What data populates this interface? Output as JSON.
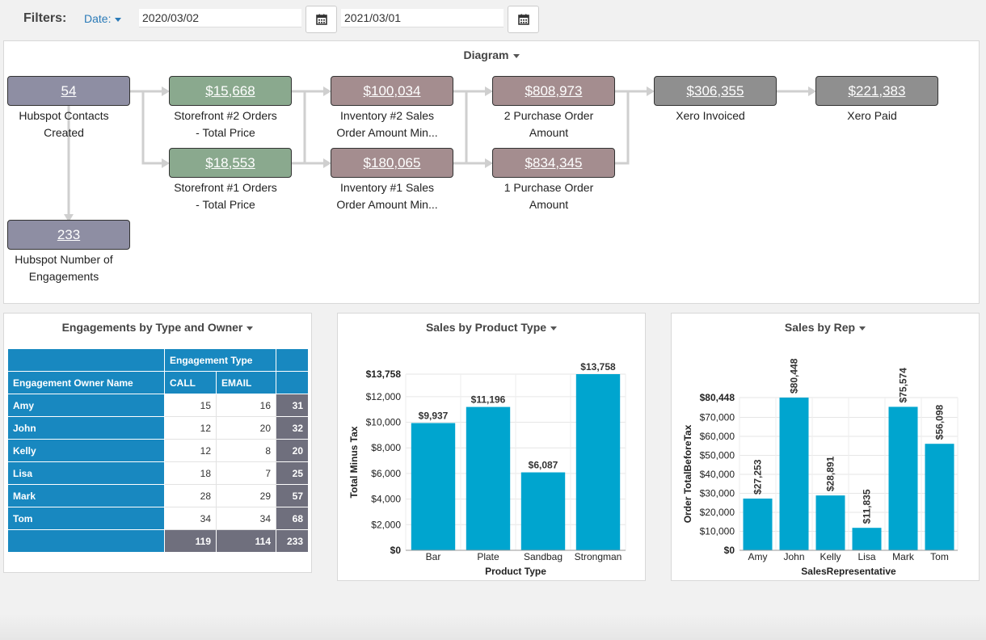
{
  "filters": {
    "label": "Filters:",
    "date_dropdown": "Date:",
    "start_date": "2020/03/02",
    "end_date": "2021/03/01"
  },
  "diagram": {
    "title": "Diagram",
    "nodes": [
      {
        "value": "54",
        "label1": "Hubspot Contacts",
        "label2": "Created",
        "color": "#8e8ea3"
      },
      {
        "value": "233",
        "label1": "Hubspot Number of",
        "label2": "Engagements",
        "color": "#8e8ea3"
      },
      {
        "value": "$15,668",
        "label1": "Storefront #2 Orders",
        "label2": "- Total Price",
        "color": "#8aa98e"
      },
      {
        "value": "$18,553",
        "label1": "Storefront #1 Orders",
        "label2": "- Total Price",
        "color": "#8aa98e"
      },
      {
        "value": "$100,034",
        "label1": "Inventory #2 Sales",
        "label2": "Order Amount Min...",
        "color": "#a48d8f"
      },
      {
        "value": "$180,065",
        "label1": "Inventory #1 Sales",
        "label2": "Order Amount Min...",
        "color": "#a48d8f"
      },
      {
        "value": "$808,973",
        "label1": "2 Purchase Order",
        "label2": "Amount",
        "color": "#a48d8f"
      },
      {
        "value": "$834,345",
        "label1": "1 Purchase Order",
        "label2": "Amount",
        "color": "#a48d8f"
      },
      {
        "value": "$306,355",
        "label1": "Xero Invoiced",
        "label2": "",
        "color": "#8f8f8f"
      },
      {
        "value": "$221,383",
        "label1": "Xero Paid",
        "label2": "",
        "color": "#8f8f8f"
      }
    ]
  },
  "engagements": {
    "title": "Engagements by Type and Owner",
    "group_header": "Engagement Type",
    "row_header": "Engagement Owner Name",
    "col1": "CALL",
    "col2": "EMAIL",
    "rows": [
      {
        "name": "Amy",
        "call": "15",
        "email": "16",
        "total": "31"
      },
      {
        "name": "John",
        "call": "12",
        "email": "20",
        "total": "32"
      },
      {
        "name": "Kelly",
        "call": "12",
        "email": "8",
        "total": "20"
      },
      {
        "name": "Lisa",
        "call": "18",
        "email": "7",
        "total": "25"
      },
      {
        "name": "Mark",
        "call": "28",
        "email": "29",
        "total": "57"
      },
      {
        "name": "Tom",
        "call": "34",
        "email": "34",
        "total": "68"
      }
    ],
    "totals": {
      "call": "119",
      "email": "114",
      "total": "233"
    }
  },
  "chart_data": [
    {
      "type": "bar",
      "title": "Sales by Product Type",
      "xlabel": "Product Type",
      "ylabel": "Total Minus Tax",
      "categories": [
        "Bar",
        "Plate",
        "Sandbag",
        "Strongman"
      ],
      "values": [
        9937,
        11196,
        6087,
        13758
      ],
      "value_labels": [
        "$9,937",
        "$11,196",
        "$6,087",
        "$13,758"
      ],
      "ylim": [
        0,
        13758
      ],
      "yticks": [
        0,
        2000,
        4000,
        6000,
        8000,
        10000,
        12000,
        13758
      ],
      "ytick_labels": [
        "$0",
        "$2,000",
        "$4,000",
        "$6,000",
        "$8,000",
        "$10,000",
        "$12,000",
        "$13,758"
      ],
      "grid": true,
      "color": "#00a5cf"
    },
    {
      "type": "bar",
      "title": "Sales by Rep",
      "xlabel": "SalesRepresentative",
      "ylabel": "Order TotalBeforeTax",
      "categories": [
        "Amy",
        "John",
        "Kelly",
        "Lisa",
        "Mark",
        "Tom"
      ],
      "values": [
        27253,
        80448,
        28891,
        11835,
        75574,
        56098
      ],
      "value_labels": [
        "$27,253",
        "$80,448",
        "$28,891",
        "$11,835",
        "$75,574",
        "$56,098"
      ],
      "ylim": [
        0,
        80448
      ],
      "yticks": [
        0,
        10000,
        20000,
        30000,
        40000,
        50000,
        60000,
        70000,
        80448
      ],
      "ytick_labels": [
        "$0",
        "$10,000",
        "$20,000",
        "$30,000",
        "$40,000",
        "$50,000",
        "$60,000",
        "$70,000",
        "$80,448"
      ],
      "grid": true,
      "color": "#00a5cf"
    }
  ]
}
